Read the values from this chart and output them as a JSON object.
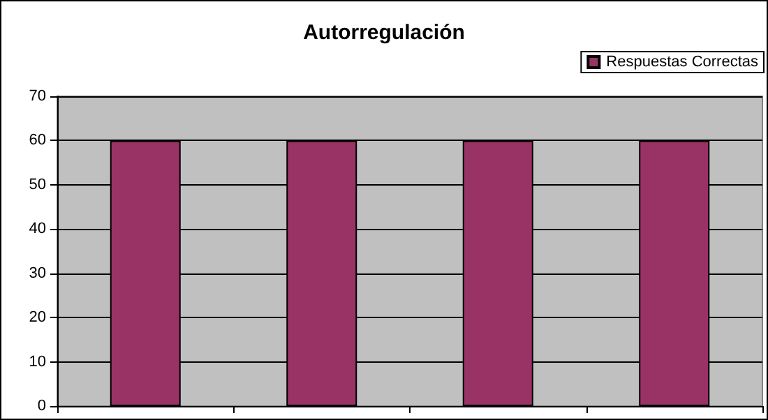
{
  "chart_data": {
    "type": "bar",
    "title": "Autorregulación",
    "categories": [
      null,
      null,
      null,
      null
    ],
    "series": [
      {
        "name": "Respuestas Correctas",
        "color": "#993366",
        "values": [
          60,
          60,
          60,
          60
        ]
      }
    ],
    "ylim": [
      0,
      70
    ],
    "yticks": [
      0,
      10,
      20,
      30,
      40,
      50,
      60,
      70
    ],
    "grid": "y",
    "legend": "top right"
  }
}
